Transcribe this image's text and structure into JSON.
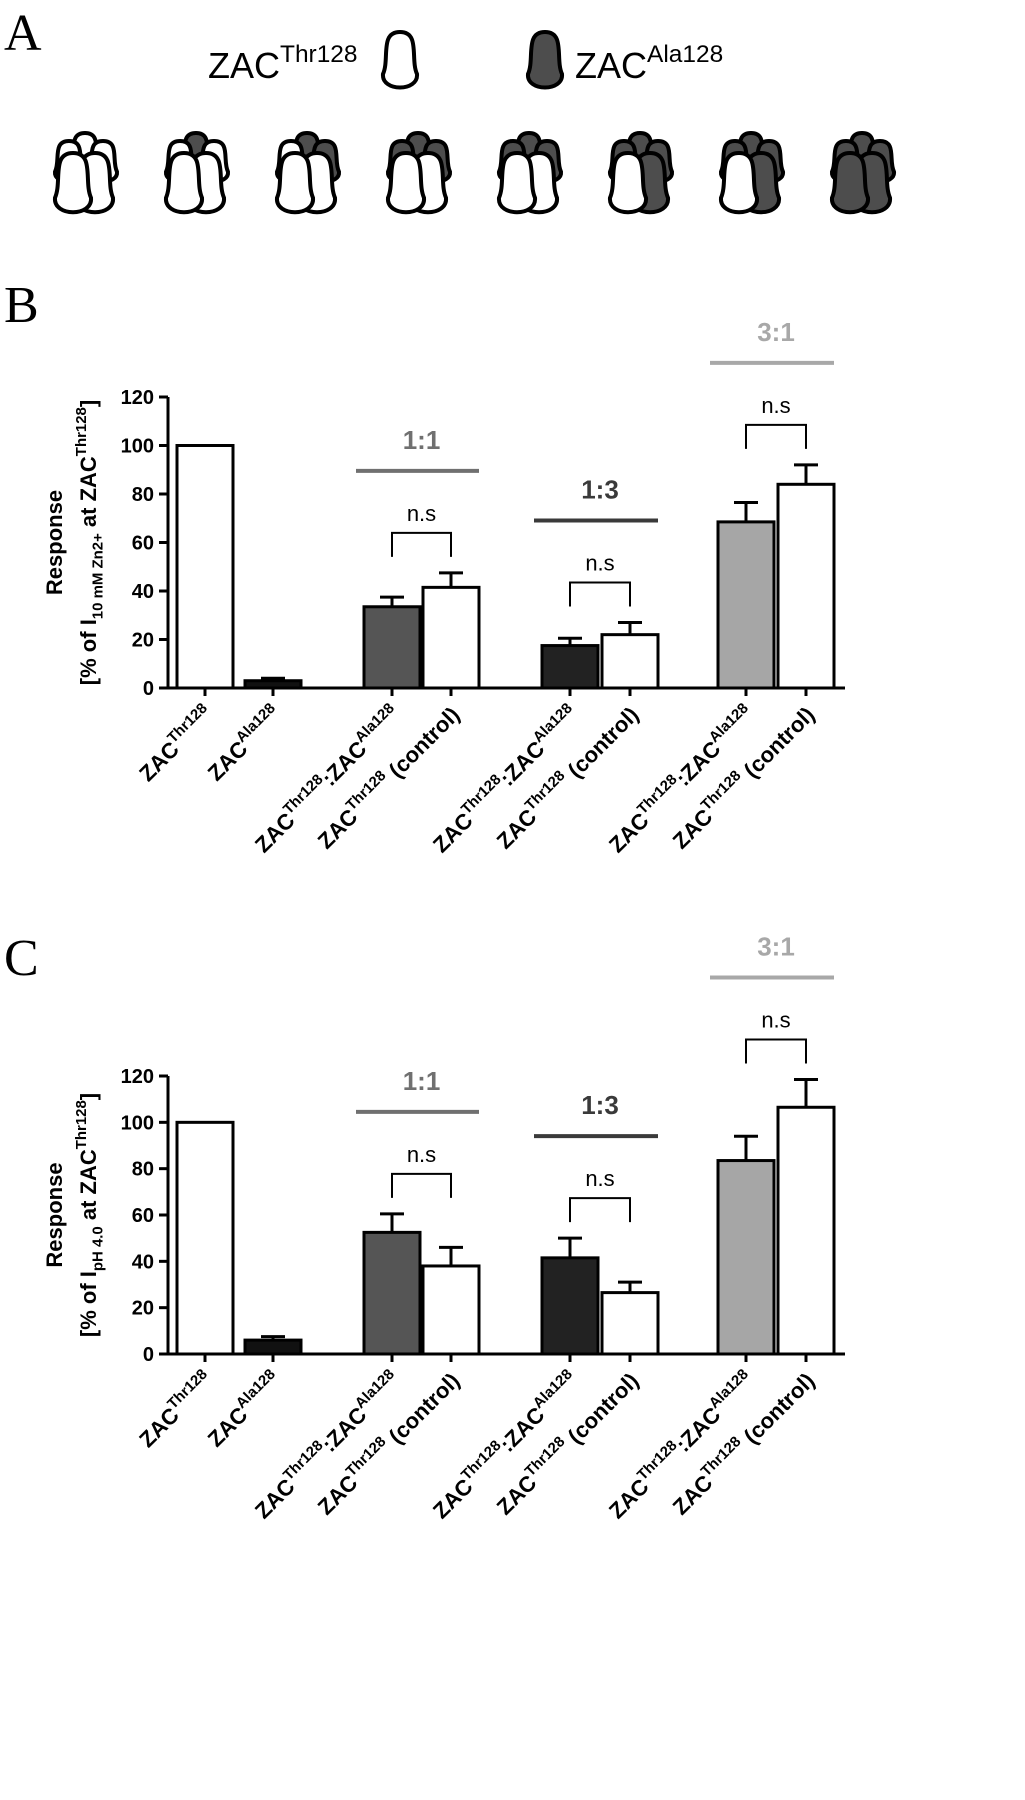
{
  "panel_labels": [
    "A",
    "B",
    "C"
  ],
  "legend": [
    {
      "parts": [
        "ZAC",
        "Thr128"
      ],
      "color": "#ffffff"
    },
    {
      "parts": [
        "ZAC",
        "Ala128"
      ],
      "color": "#4d4d4d"
    }
  ],
  "chart_data": [
    {
      "type": "bar",
      "ylabel": [
        [
          {
            "text": "Response"
          }
        ],
        [
          {
            "text": "[% of I"
          },
          {
            "text": "10 mM  Zn2+",
            "shift": "sub"
          },
          {
            "text": " at ZAC"
          },
          {
            "text": "Thr128",
            "shift": "sup"
          },
          {
            "text": "]"
          }
        ]
      ],
      "categories": [
        [
          "ZAC",
          "Thr128"
        ],
        [
          "ZAC",
          "Ala128"
        ],
        [
          "ZAC",
          "Thr128",
          ":ZAC",
          "Ala128"
        ],
        [
          "ZAC",
          "Thr128",
          " (control)"
        ],
        [
          "ZAC",
          "Thr128",
          ":ZAC",
          "Ala128"
        ],
        [
          "ZAC",
          "Thr128",
          " (control)"
        ],
        [
          "ZAC",
          "Thr128",
          ":ZAC",
          "Ala128"
        ],
        [
          "ZAC",
          "Thr128",
          " (control)"
        ]
      ],
      "values": [
        100,
        3,
        33.5,
        41.5,
        17.5,
        22,
        68.5,
        84
      ],
      "errors": [
        null,
        1,
        4,
        6,
        3,
        5,
        8,
        8
      ],
      "colors": [
        "#ffffff",
        "#111111",
        "#555555",
        "#ffffff",
        "#222222",
        "#ffffff",
        "#a6a6a6",
        "#ffffff"
      ],
      "groups": [
        {
          "label": "1:1",
          "color": "#707070",
          "note": "n.s"
        },
        {
          "label": "1:3",
          "color": "#3a3a3a",
          "note": "n.s"
        },
        {
          "label": "3:1",
          "color": "#a8a8a8",
          "note": "n.s"
        }
      ],
      "ylim": [
        0,
        120
      ],
      "yticks": [
        0,
        20,
        40,
        60,
        80,
        100,
        120
      ]
    },
    {
      "type": "bar",
      "ylabel": [
        [
          {
            "text": "Response"
          }
        ],
        [
          {
            "text": "[% of I"
          },
          {
            "text": "pH 4.0",
            "shift": "sub"
          },
          {
            "text": " at ZAC"
          },
          {
            "text": "Thr128",
            "shift": "sup"
          },
          {
            "text": "]"
          }
        ]
      ],
      "categories": [
        [
          "ZAC",
          "Thr128"
        ],
        [
          "ZAC",
          "Ala128"
        ],
        [
          "ZAC",
          "Thr128",
          ":ZAC",
          "Ala128"
        ],
        [
          "ZAC",
          "Thr128",
          " (control)"
        ],
        [
          "ZAC",
          "Thr128",
          ":ZAC",
          "Ala128"
        ],
        [
          "ZAC",
          "Thr128",
          " (control)"
        ],
        [
          "ZAC",
          "Thr128",
          ":ZAC",
          "Ala128"
        ],
        [
          "ZAC",
          "Thr128",
          " (control)"
        ]
      ],
      "values": [
        100,
        6,
        52.5,
        38,
        41.5,
        26.5,
        83.5,
        106.5
      ],
      "errors": [
        null,
        1.5,
        8,
        8,
        8.5,
        4.5,
        10.5,
        12
      ],
      "colors": [
        "#ffffff",
        "#111111",
        "#555555",
        "#ffffff",
        "#222222",
        "#ffffff",
        "#a6a6a6",
        "#ffffff"
      ],
      "groups": [
        {
          "label": "1:1",
          "color": "#707070",
          "note": "n.s"
        },
        {
          "label": "1:3",
          "color": "#3a3a3a",
          "note": "n.s"
        },
        {
          "label": "3:1",
          "color": "#a8a8a8",
          "note": "n.s"
        }
      ],
      "ylim": [
        0,
        120
      ],
      "yticks": [
        0,
        20,
        40,
        60,
        80,
        100,
        120
      ]
    }
  ]
}
